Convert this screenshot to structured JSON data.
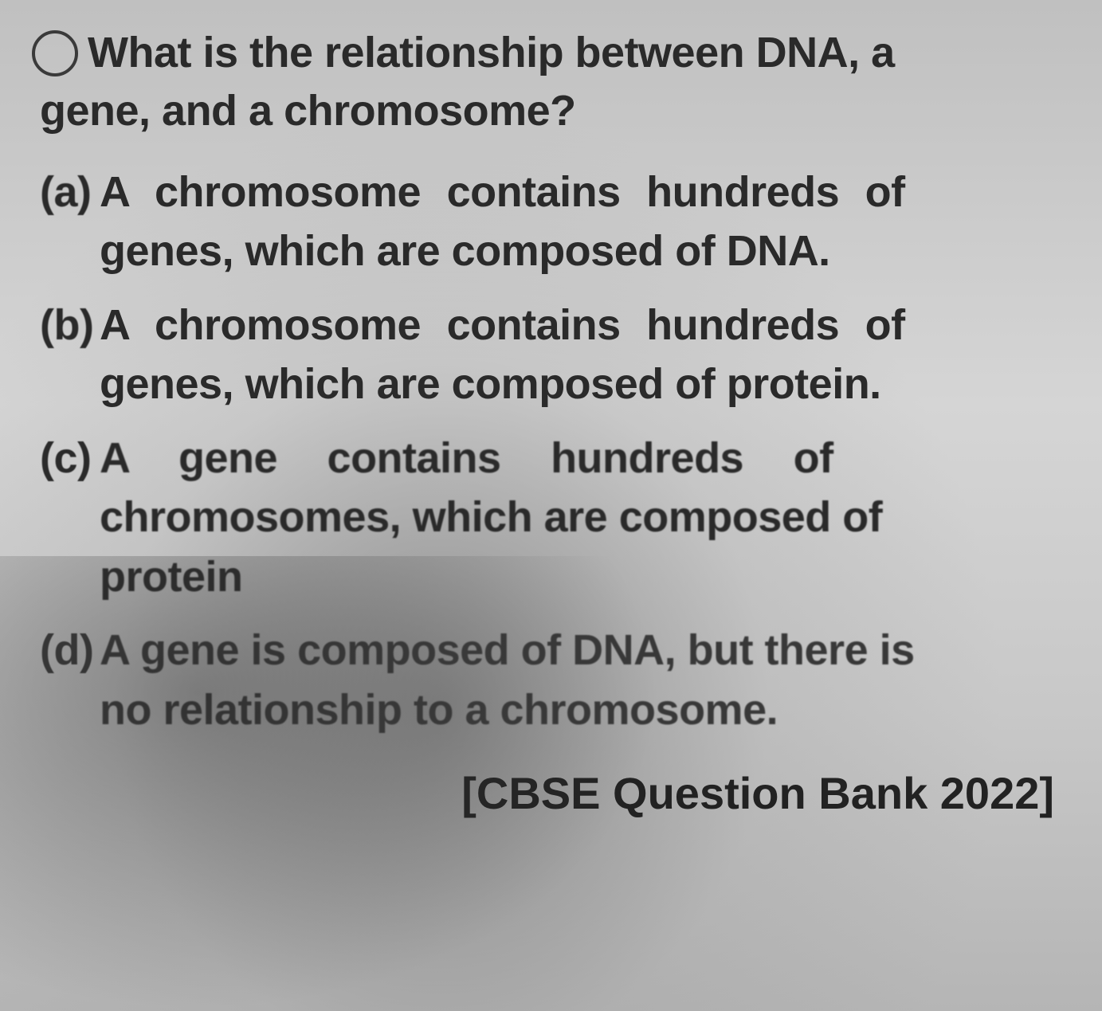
{
  "question": {
    "line1": "What is the relationship between DNA, a",
    "line2": "gene, and a chromosome?"
  },
  "options": {
    "a": {
      "label": "(a)",
      "line1": "A chromosome contains hundreds of",
      "line2": "genes, which are composed of DNA."
    },
    "b": {
      "label": "(b)",
      "line1": "A chromosome contains hundreds of",
      "line2": "genes, which are composed of protein."
    },
    "c": {
      "label": "(c)",
      "line1": "A gene contains hundreds of",
      "line2": "chromosomes, which are composed of",
      "line3": "protein"
    },
    "d": {
      "label": "(d)",
      "line1": "A gene is composed of DNA, but there is",
      "line2": "no relationship to a chromosome."
    }
  },
  "source": "[CBSE Question Bank 2022]",
  "colors": {
    "text": "#2a2a2a",
    "background_light": "#d5d5d5",
    "background_dark": "#b0b0b0",
    "shadow": "#505050"
  },
  "typography": {
    "question_fontsize": 54,
    "option_fontsize": 54,
    "source_fontsize": 56,
    "font_weight": 600,
    "font_family": "Arial"
  }
}
